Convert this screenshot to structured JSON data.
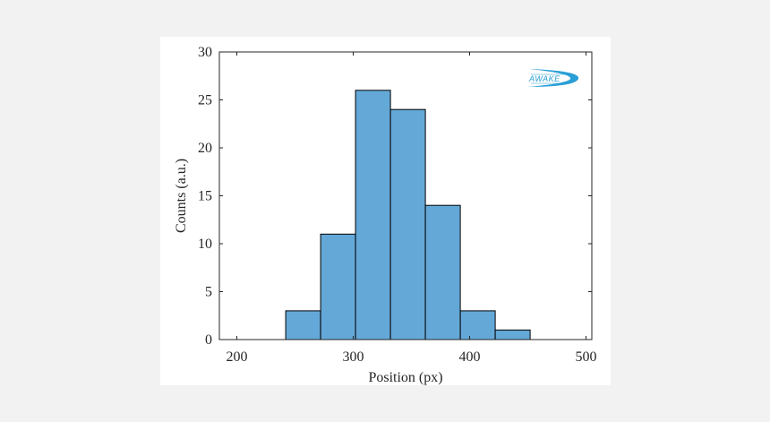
{
  "chart_data": {
    "type": "bar",
    "title": "",
    "xlabel": "Position (px)",
    "ylabel": "Counts (a.u.)",
    "xlim": [
      185,
      505
    ],
    "ylim": [
      0,
      30
    ],
    "xticks": [
      "200",
      "300",
      "400",
      "500"
    ],
    "yticks": [
      "0",
      "5",
      "10",
      "15",
      "20",
      "25",
      "30"
    ],
    "bins": [
      {
        "start": 242,
        "end": 272,
        "count": 3
      },
      {
        "start": 272,
        "end": 302,
        "count": 11
      },
      {
        "start": 302,
        "end": 332,
        "count": 26
      },
      {
        "start": 332,
        "end": 362,
        "count": 24
      },
      {
        "start": 362,
        "end": 392,
        "count": 14
      },
      {
        "start": 392,
        "end": 422,
        "count": 3
      },
      {
        "start": 422,
        "end": 452,
        "count": 1
      }
    ],
    "bar_color": "#64a8d8",
    "edge_color": "#000000",
    "grid": false
  },
  "logo": {
    "text": "AWAKE",
    "color": "#2a9fd6"
  }
}
